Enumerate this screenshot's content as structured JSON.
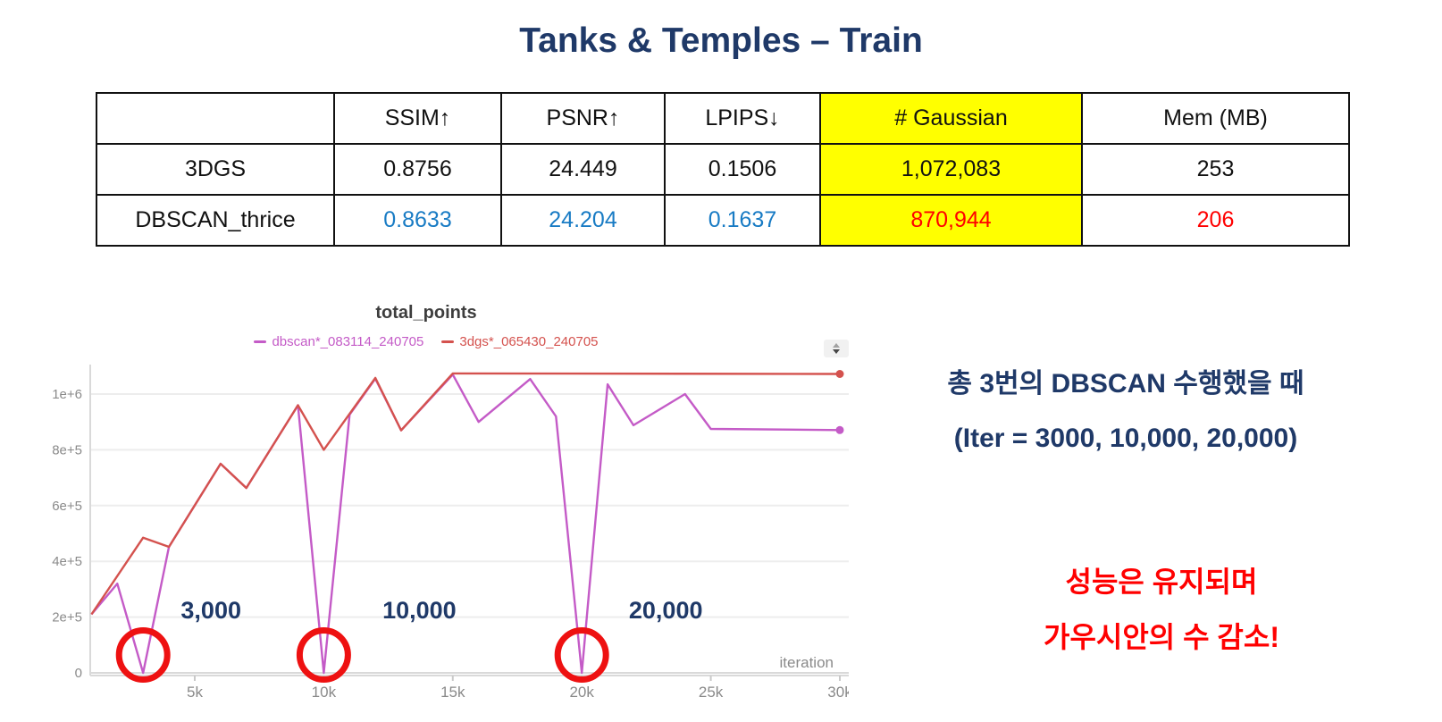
{
  "title": "Tanks & Temples – Train",
  "colors": {
    "navy": "#1f3968",
    "red": "#ff0000",
    "blue": "#187bc4",
    "yellow": "#ffff00"
  },
  "table": {
    "columns": [
      "",
      "SSIM↑",
      "PSNR↑",
      "LPIPS↓",
      "# Gaussian",
      "Mem (MB)"
    ],
    "rows": [
      [
        "3DGS",
        "0.8756",
        "24.449",
        "0.1506",
        "1,072,083",
        "253"
      ],
      [
        "DBSCAN_thrice",
        "0.8633",
        "24.204",
        "0.1637",
        "870,944",
        "206"
      ]
    ]
  },
  "chart_data": {
    "type": "line",
    "title": "total_points",
    "xlabel": "iteration",
    "x_ticks": [
      "5k",
      "10k",
      "15k",
      "20k",
      "25k",
      "30k"
    ],
    "x_tick_values": [
      5000,
      10000,
      15000,
      20000,
      25000,
      30000
    ],
    "y_ticks": [
      "1e+6",
      "8e+5",
      "6e+5",
      "4e+5",
      "2e+5",
      "0"
    ],
    "y_tick_values": [
      1000000,
      800000,
      600000,
      400000,
      200000,
      0
    ],
    "xlim": [
      950,
      30000
    ],
    "ylim": [
      0,
      1100000
    ],
    "grid": "horizontal",
    "legend_position": "top-center",
    "annotation_color": "#1f3968",
    "circle_color": "#ee1111",
    "series": [
      {
        "name": "dbscan*_083114_240705",
        "color": "#c45bc7",
        "points": [
          [
            1000,
            210000
          ],
          [
            2000,
            320000
          ],
          [
            3000,
            0
          ],
          [
            4000,
            452000
          ],
          [
            6000,
            750000
          ],
          [
            7000,
            663000
          ],
          [
            9000,
            960000
          ],
          [
            10000,
            0
          ],
          [
            11000,
            926000
          ],
          [
            12000,
            1055000
          ],
          [
            13000,
            870000
          ],
          [
            15000,
            1070000
          ],
          [
            16000,
            900000
          ],
          [
            18000,
            1054000
          ],
          [
            19000,
            920000
          ],
          [
            20000,
            0
          ],
          [
            21000,
            1035000
          ],
          [
            22000,
            888000
          ],
          [
            24000,
            1000000
          ],
          [
            25000,
            875000
          ],
          [
            30000,
            870944
          ]
        ]
      },
      {
        "name": "3dgs*_065430_240705",
        "color": "#d4524e",
        "points": [
          [
            1000,
            210000
          ],
          [
            3000,
            485000
          ],
          [
            4000,
            452000
          ],
          [
            6000,
            750000
          ],
          [
            7000,
            663000
          ],
          [
            9000,
            960000
          ],
          [
            10000,
            800000
          ],
          [
            12000,
            1058000
          ],
          [
            13000,
            870000
          ],
          [
            15000,
            1074000
          ],
          [
            30000,
            1072083
          ]
        ]
      }
    ],
    "annotations": [
      {
        "label": "3,000",
        "iteration": 3000,
        "label_dx": 76
      },
      {
        "label": "10,000",
        "iteration": 10000,
        "label_dx": 107
      },
      {
        "label": "20,000",
        "iteration": 20000,
        "label_dx": 94
      }
    ]
  },
  "notes": {
    "line1": "총 3번의 DBSCAN 수행했을 때",
    "line2": "(Iter = 3000, 10,000, 20,000)",
    "line3": "성능은 유지되며",
    "line4": "가우시안의 수 감소!"
  }
}
